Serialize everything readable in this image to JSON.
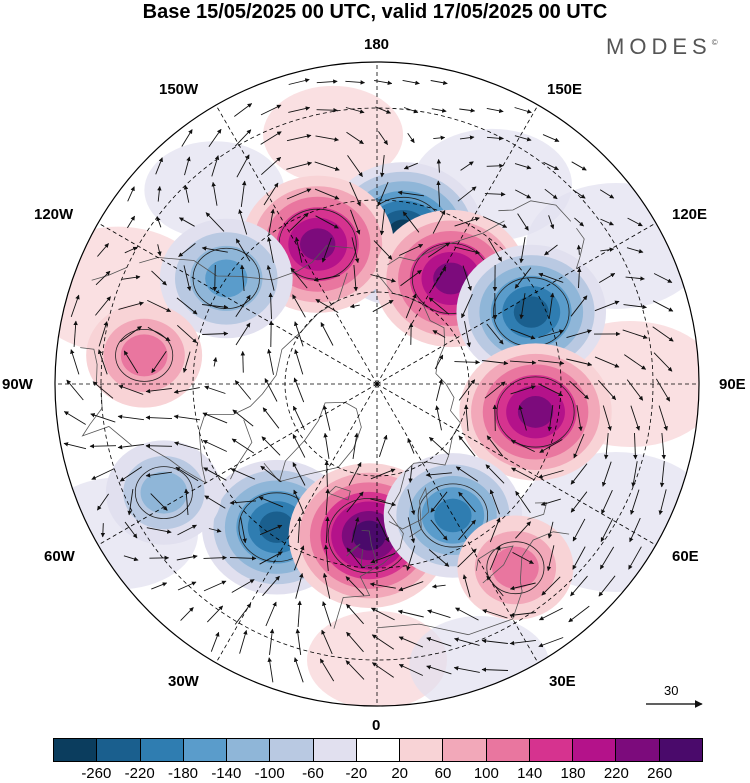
{
  "title": "Base 15/05/2025 00 UTC, valid 17/05/2025 00 UTC",
  "brand": "MODES",
  "brand_mark": "©",
  "longitude_labels": {
    "lon_180": "180",
    "lon_150w": "150W",
    "lon_150e": "150E",
    "lon_120w": "120W",
    "lon_120e": "120E",
    "lon_90w": "90W",
    "lon_90e": "90E",
    "lon_60w": "60W",
    "lon_60e": "60E",
    "lon_30w": "30W",
    "lon_30e": "30E",
    "lon_0": "0"
  },
  "reference_vector": {
    "label": "30"
  },
  "colorbar": {
    "colors": [
      "#0b3d5e",
      "#1a5f8e",
      "#2f7db1",
      "#5a9ccb",
      "#8fb6d8",
      "#b9c9e2",
      "#e1e0ef",
      "#ffffff",
      "#f8d3d6",
      "#f2a8b9",
      "#e9769f",
      "#d6338f",
      "#b4128a",
      "#7c0b7c",
      "#4a0a6b"
    ],
    "labels": [
      "-260",
      "-220",
      "-180",
      "-140",
      "-100",
      "-60",
      "-20",
      "20",
      "60",
      "100",
      "140",
      "180",
      "220",
      "260"
    ]
  },
  "anomaly_centers": [
    {
      "lon": 170,
      "lat": 57,
      "value": -260,
      "color": "#1a5f8e"
    },
    {
      "lon": -157,
      "lat": 57,
      "value": 230,
      "color": "#b4128a"
    },
    {
      "lon": -125,
      "lat": 50,
      "value": -160,
      "color": "#2f7db1"
    },
    {
      "lon": 145,
      "lat": 62,
      "value": 230,
      "color": "#b4128a"
    },
    {
      "lon": 115,
      "lat": 53,
      "value": -220,
      "color": "#1a5f8e"
    },
    {
      "lon": 80,
      "lat": 55,
      "value": 230,
      "color": "#b4128a"
    },
    {
      "lon": -97,
      "lat": 39,
      "value": 100,
      "color": "#f2a8b9"
    },
    {
      "lon": -35,
      "lat": 52,
      "value": -220,
      "color": "#2f7db1"
    },
    {
      "lon": -3,
      "lat": 57,
      "value": 260,
      "color": "#7c0b7c"
    },
    {
      "lon": 30,
      "lat": 57,
      "value": -180,
      "color": "#2f7db1"
    },
    {
      "lon": 37,
      "lat": 40,
      "value": 100,
      "color": "#f2a8b9"
    },
    {
      "lon": -63,
      "lat": 38,
      "value": -100,
      "color": "#8fb6d8"
    }
  ]
}
